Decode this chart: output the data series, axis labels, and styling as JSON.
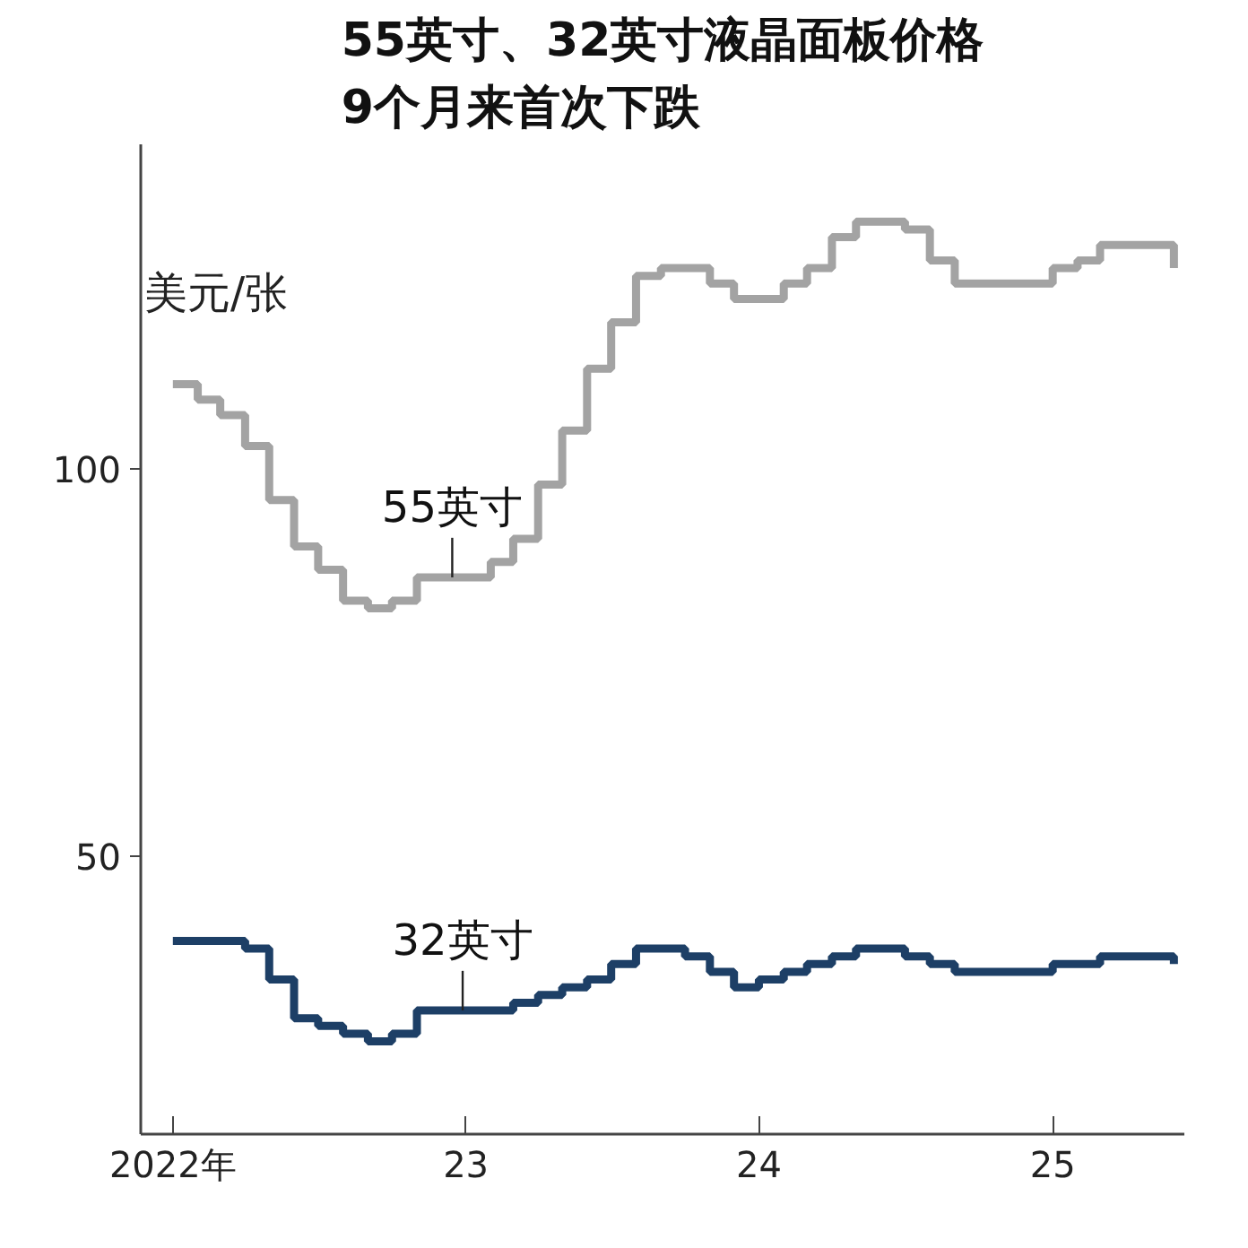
{
  "chart_data": {
    "type": "step",
    "title": "55英寸、32英寸液晶面板价格\n9个月来首次下跌",
    "ylabel": "美元/张",
    "x": [
      "2022-01",
      "2022-02",
      "2022-03",
      "2022-04",
      "2022-05",
      "2022-06",
      "2022-07",
      "2022-08",
      "2022-09",
      "2022-10",
      "2022-11",
      "2022-12",
      "2023-01",
      "2023-02",
      "2023-03",
      "2023-04",
      "2023-05",
      "2023-06",
      "2023-07",
      "2023-08",
      "2023-09",
      "2023-10",
      "2023-11",
      "2023-12",
      "2024-01",
      "2024-02",
      "2024-03",
      "2024-04",
      "2024-05",
      "2024-06",
      "2024-07",
      "2024-08",
      "2024-09",
      "2024-10",
      "2024-11",
      "2024-12",
      "2025-01",
      "2025-02",
      "2025-03",
      "2025-04",
      "2025-05",
      "2025-06"
    ],
    "series": [
      {
        "color": "#a3a3a3",
        "values": [
          111,
          109,
          107,
          103,
          96,
          90,
          87,
          83,
          82,
          83,
          86,
          86,
          86,
          88,
          91,
          98,
          105,
          113,
          119,
          125,
          126,
          126,
          124,
          122,
          122,
          124,
          126,
          130,
          132,
          132,
          131,
          127,
          124,
          124,
          124,
          124,
          126,
          127,
          129,
          129,
          129,
          126
        ]
      },
      {
        "color": "#1d3f66",
        "values": [
          39,
          39,
          39,
          38,
          34,
          29,
          28,
          27,
          26,
          27,
          30,
          30,
          30,
          30,
          31,
          32,
          33,
          34,
          36,
          38,
          38,
          37,
          35,
          33,
          34,
          35,
          36,
          37,
          38,
          38,
          37,
          36,
          35,
          35,
          35,
          35,
          36,
          36,
          37,
          37,
          37,
          36
        ]
      }
    ],
    "annotations": [
      {
        "text": "55英寸",
        "x": "2022-12-15",
        "y": 86
      },
      {
        "text": "32英寸",
        "x": "2022-12-28",
        "y": 30
      }
    ],
    "xlim": [
      "2021-11-22",
      "2025-06-14"
    ],
    "xticks": [
      {
        "value": "2022-01",
        "label": "2022年"
      },
      {
        "value": "2023-01",
        "label": "23"
      },
      {
        "value": "2024-01",
        "label": "24"
      },
      {
        "value": "2025-01",
        "label": "25"
      }
    ],
    "ylim": [
      14,
      142
    ],
    "yticks": [
      50,
      100
    ],
    "grid": false,
    "line_style": "solid",
    "marker": "none"
  }
}
